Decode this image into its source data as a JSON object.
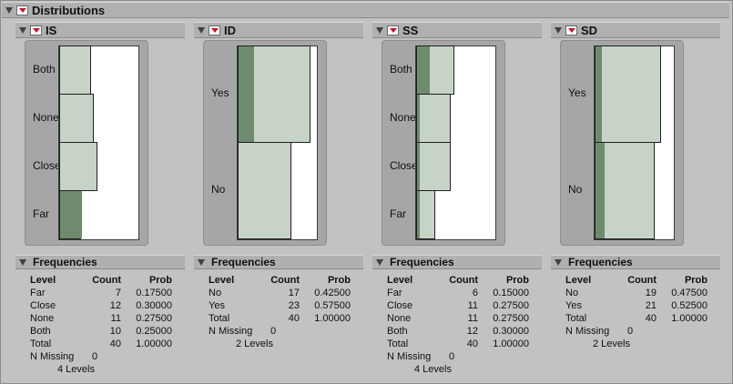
{
  "report": {
    "title": "Distributions"
  },
  "panels": [
    {
      "name": "IS",
      "categories": [
        {
          "label": "Both",
          "count": 10,
          "selected": 0
        },
        {
          "label": "None",
          "count": 11,
          "selected": 0
        },
        {
          "label": "Close",
          "count": 12,
          "selected": 0
        },
        {
          "label": "Far",
          "count": 7,
          "selected": 7
        }
      ],
      "freq": {
        "title": "Frequencies",
        "headers": [
          "Level",
          "Count",
          "Prob"
        ],
        "rows": [
          [
            "Far",
            "7",
            "0.17500"
          ],
          [
            "Close",
            "12",
            "0.30000"
          ],
          [
            "None",
            "11",
            "0.27500"
          ],
          [
            "Both",
            "10",
            "0.25000"
          ],
          [
            "Total",
            "40",
            "1.00000"
          ]
        ],
        "missing_label": "N Missing",
        "missing_value": "0",
        "levels": "4  Levels"
      }
    },
    {
      "name": "ID",
      "categories": [
        {
          "label": "Yes",
          "count": 23,
          "selected": 5
        },
        {
          "label": "No",
          "count": 17,
          "selected": 0
        }
      ],
      "freq": {
        "title": "Frequencies",
        "headers": [
          "Level",
          "Count",
          "Prob"
        ],
        "rows": [
          [
            "No",
            "17",
            "0.42500"
          ],
          [
            "Yes",
            "23",
            "0.57500"
          ],
          [
            "Total",
            "40",
            "1.00000"
          ]
        ],
        "missing_label": "N Missing",
        "missing_value": "0",
        "levels": "2  Levels"
      }
    },
    {
      "name": "SS",
      "categories": [
        {
          "label": "Both",
          "count": 12,
          "selected": 4
        },
        {
          "label": "None",
          "count": 11,
          "selected": 1
        },
        {
          "label": "Close",
          "count": 11,
          "selected": 1
        },
        {
          "label": "Far",
          "count": 6,
          "selected": 1
        }
      ],
      "freq": {
        "title": "Frequencies",
        "headers": [
          "Level",
          "Count",
          "Prob"
        ],
        "rows": [
          [
            "Far",
            "6",
            "0.15000"
          ],
          [
            "Close",
            "11",
            "0.27500"
          ],
          [
            "None",
            "11",
            "0.27500"
          ],
          [
            "Both",
            "12",
            "0.30000"
          ],
          [
            "Total",
            "40",
            "1.00000"
          ]
        ],
        "missing_label": "N Missing",
        "missing_value": "0",
        "levels": "4  Levels"
      }
    },
    {
      "name": "SD",
      "categories": [
        {
          "label": "Yes",
          "count": 21,
          "selected": 2
        },
        {
          "label": "No",
          "count": 19,
          "selected": 3
        }
      ],
      "freq": {
        "title": "Frequencies",
        "headers": [
          "Level",
          "Count",
          "Prob"
        ],
        "rows": [
          [
            "No",
            "19",
            "0.47500"
          ],
          [
            "Yes",
            "21",
            "0.52500"
          ],
          [
            "Total",
            "40",
            "1.00000"
          ]
        ],
        "missing_label": "N Missing",
        "missing_value": "0",
        "levels": "2  Levels"
      }
    }
  ],
  "colors": {
    "bar_fill": "#c7d3c7",
    "bar_selected": "#6e8b6e",
    "menu_arrow": "#c8102e"
  }
}
